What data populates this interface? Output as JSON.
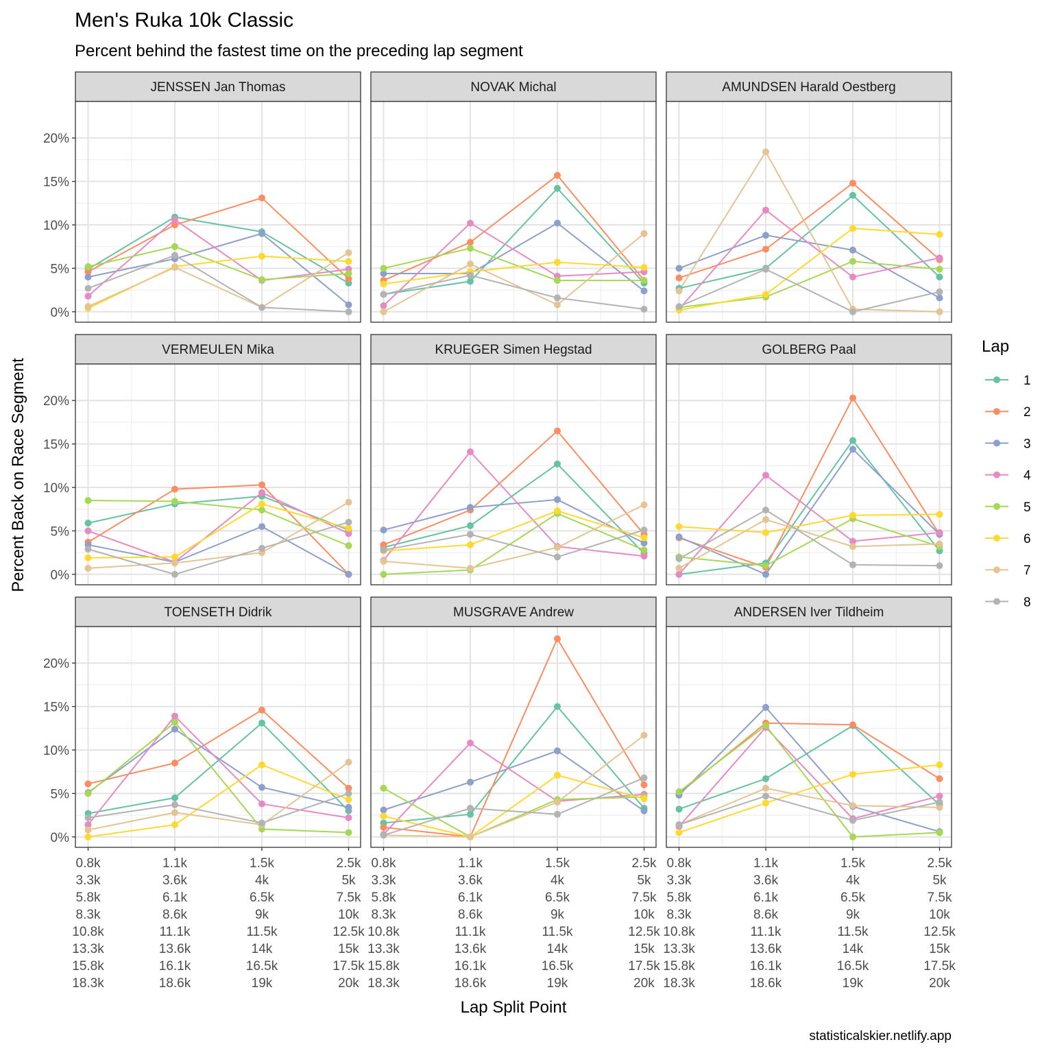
{
  "chart_data": {
    "type": "line",
    "title": "Men's Ruka 10k Classic",
    "subtitle": "Percent behind the fastest time on the preceding lap segment",
    "xlabel": "Lap Split Point",
    "ylabel": "Percent Back on Race Segment",
    "caption": "statisticalskier.netlify.app",
    "legend": {
      "title": "Lap",
      "position": "right",
      "entries": [
        "1",
        "2",
        "3",
        "4",
        "5",
        "6",
        "7",
        "8"
      ]
    },
    "y_ticks": [
      "0%",
      "5%",
      "10%",
      "15%",
      "20%"
    ],
    "y_tick_values": [
      0,
      5,
      10,
      15,
      20
    ],
    "ylim": [
      -1.2,
      24.2
    ],
    "x_tick_labels": [
      [
        "0.8k",
        "3.3k",
        "5.8k",
        "8.3k",
        "10.8k",
        "13.3k",
        "15.8k",
        "18.3k"
      ],
      [
        "1.1k",
        "3.6k",
        "6.1k",
        "8.6k",
        "11.1k",
        "13.6k",
        "16.1k",
        "18.6k"
      ],
      [
        "1.5k",
        "4k",
        "6.5k",
        "9k",
        "11.5k",
        "14k",
        "16.5k",
        "19k"
      ],
      [
        "2.5k",
        "5k",
        "7.5k",
        "10k",
        "12.5k",
        "15k",
        "17.5k",
        "20k"
      ]
    ],
    "colors": [
      "#66c2a5",
      "#fc8d62",
      "#8da0cb",
      "#e78ac3",
      "#a6d854",
      "#ffd92f",
      "#e5c494",
      "#b3b3b3"
    ],
    "grid": true,
    "facets": [
      {
        "name": "JENSSEN Jan Thomas",
        "series": [
          {
            "name": "1",
            "values": [
              4.9,
              10.9,
              9.2,
              3.3
            ]
          },
          {
            "name": "2",
            "values": [
              4.6,
              10.0,
              13.1,
              3.8
            ]
          },
          {
            "name": "3",
            "values": [
              4.0,
              6.1,
              9.0,
              0.8
            ]
          },
          {
            "name": "4",
            "values": [
              1.8,
              10.6,
              3.6,
              4.9
            ]
          },
          {
            "name": "5",
            "values": [
              5.2,
              7.5,
              3.7,
              4.4
            ]
          },
          {
            "name": "6",
            "values": [
              0.4,
              5.2,
              6.4,
              5.8
            ]
          },
          {
            "name": "7",
            "values": [
              0.6,
              5.1,
              0.5,
              6.8
            ]
          },
          {
            "name": "8",
            "values": [
              2.7,
              6.5,
              0.5,
              0.0
            ]
          }
        ]
      },
      {
        "name": "NOVAK Michal",
        "series": [
          {
            "name": "1",
            "values": [
              2.0,
              3.5,
              14.2,
              3.3
            ]
          },
          {
            "name": "2",
            "values": [
              3.6,
              8.0,
              15.7,
              3.6
            ]
          },
          {
            "name": "3",
            "values": [
              4.4,
              4.4,
              10.2,
              2.4
            ]
          },
          {
            "name": "4",
            "values": [
              0.7,
              10.2,
              4.1,
              4.6
            ]
          },
          {
            "name": "5",
            "values": [
              5.0,
              7.3,
              3.6,
              3.6
            ]
          },
          {
            "name": "6",
            "values": [
              3.2,
              4.6,
              5.7,
              5.1
            ]
          },
          {
            "name": "7",
            "values": [
              0.0,
              5.5,
              0.8,
              9.0
            ]
          },
          {
            "name": "8",
            "values": [
              2.0,
              4.2,
              1.6,
              0.3
            ]
          }
        ]
      },
      {
        "name": "AMUNDSEN Harald Oestberg",
        "series": [
          {
            "name": "1",
            "values": [
              2.7,
              5.0,
              13.4,
              4.0
            ]
          },
          {
            "name": "2",
            "values": [
              3.9,
              7.2,
              14.8,
              6.0
            ]
          },
          {
            "name": "3",
            "values": [
              5.0,
              8.8,
              7.1,
              1.6
            ]
          },
          {
            "name": "4",
            "values": [
              0.3,
              11.7,
              4.0,
              6.2
            ]
          },
          {
            "name": "5",
            "values": [
              0.5,
              1.7,
              5.8,
              4.9
            ]
          },
          {
            "name": "6",
            "values": [
              0.2,
              2.0,
              9.6,
              8.9
            ]
          },
          {
            "name": "7",
            "values": [
              2.4,
              18.4,
              0.3,
              0.0
            ]
          },
          {
            "name": "8",
            "values": [
              0.6,
              4.9,
              0.0,
              2.3
            ]
          }
        ]
      },
      {
        "name": "VERMEULEN Mika",
        "series": [
          {
            "name": "1",
            "values": [
              5.9,
              8.1,
              9.0,
              5.1
            ]
          },
          {
            "name": "2",
            "values": [
              3.7,
              9.8,
              10.3,
              0.0
            ]
          },
          {
            "name": "3",
            "values": [
              3.4,
              1.4,
              5.5,
              0.0
            ]
          },
          {
            "name": "4",
            "values": [
              5.0,
              1.4,
              9.4,
              4.7
            ]
          },
          {
            "name": "5",
            "values": [
              8.5,
              8.4,
              7.4,
              3.3
            ]
          },
          {
            "name": "6",
            "values": [
              1.9,
              2.0,
              8.1,
              5.3
            ]
          },
          {
            "name": "7",
            "values": [
              0.7,
              1.3,
              2.5,
              8.3
            ]
          },
          {
            "name": "8",
            "values": [
              2.9,
              0.0,
              3.0,
              6.0
            ]
          }
        ]
      },
      {
        "name": "KRUEGER Simen Hegstad",
        "series": [
          {
            "name": "1",
            "values": [
              3.1,
              5.6,
              12.7,
              2.4
            ]
          },
          {
            "name": "2",
            "values": [
              3.4,
              7.4,
              16.5,
              4.6
            ]
          },
          {
            "name": "3",
            "values": [
              5.1,
              7.7,
              8.6,
              3.6
            ]
          },
          {
            "name": "4",
            "values": [
              1.6,
              14.1,
              3.2,
              2.1
            ]
          },
          {
            "name": "5",
            "values": [
              0.0,
              0.5,
              7.0,
              2.8
            ]
          },
          {
            "name": "6",
            "values": [
              2.7,
              3.4,
              7.3,
              4.2
            ]
          },
          {
            "name": "7",
            "values": [
              1.5,
              0.7,
              3.1,
              8.0
            ]
          },
          {
            "name": "8",
            "values": [
              2.8,
              4.6,
              2.0,
              5.1
            ]
          }
        ]
      },
      {
        "name": "GOLBERG Paal",
        "series": [
          {
            "name": "1",
            "values": [
              0.0,
              1.3,
              15.4,
              2.7
            ]
          },
          {
            "name": "2",
            "values": [
              4.2,
              0.8,
              20.3,
              4.6
            ]
          },
          {
            "name": "3",
            "values": [
              4.3,
              0.0,
              14.4,
              4.6
            ]
          },
          {
            "name": "4",
            "values": [
              0.0,
              11.4,
              3.8,
              4.8
            ]
          },
          {
            "name": "5",
            "values": [
              2.0,
              1.0,
              6.4,
              3.2
            ]
          },
          {
            "name": "6",
            "values": [
              5.5,
              4.8,
              6.8,
              6.9
            ]
          },
          {
            "name": "7",
            "values": [
              0.7,
              6.3,
              3.2,
              3.5
            ]
          },
          {
            "name": "8",
            "values": [
              1.8,
              7.4,
              1.1,
              1.0
            ]
          }
        ]
      },
      {
        "name": "TOENSETH Didrik",
        "series": [
          {
            "name": "1",
            "values": [
              2.7,
              4.5,
              13.1,
              3.0
            ]
          },
          {
            "name": "2",
            "values": [
              6.1,
              8.5,
              14.6,
              5.6
            ]
          },
          {
            "name": "3",
            "values": [
              5.1,
              12.4,
              5.7,
              3.4
            ]
          },
          {
            "name": "4",
            "values": [
              1.4,
              13.9,
              3.8,
              2.2
            ]
          },
          {
            "name": "5",
            "values": [
              5.0,
              13.2,
              0.9,
              0.5
            ]
          },
          {
            "name": "6",
            "values": [
              0.0,
              1.4,
              8.3,
              4.3
            ]
          },
          {
            "name": "7",
            "values": [
              0.8,
              2.8,
              1.4,
              8.6
            ]
          },
          {
            "name": "8",
            "values": [
              2.2,
              3.7,
              1.6,
              5.0
            ]
          }
        ]
      },
      {
        "name": "MUSGRAVE Andrew",
        "series": [
          {
            "name": "1",
            "values": [
              1.6,
              2.6,
              15.0,
              3.3
            ]
          },
          {
            "name": "2",
            "values": [
              1.1,
              0.0,
              22.8,
              6.0
            ]
          },
          {
            "name": "3",
            "values": [
              3.1,
              6.3,
              9.9,
              3.0
            ]
          },
          {
            "name": "4",
            "values": [
              0.3,
              10.8,
              4.1,
              4.9
            ]
          },
          {
            "name": "5",
            "values": [
              5.6,
              0.0,
              4.3,
              4.6
            ]
          },
          {
            "name": "6",
            "values": [
              2.4,
              0.0,
              7.1,
              4.4
            ]
          },
          {
            "name": "7",
            "values": [
              0.2,
              0.0,
              4.0,
              11.7
            ]
          },
          {
            "name": "8",
            "values": [
              0.2,
              3.3,
              2.6,
              6.8
            ]
          }
        ]
      },
      {
        "name": "ANDERSEN Iver Tildheim",
        "series": [
          {
            "name": "1",
            "values": [
              3.2,
              6.7,
              12.8,
              3.7
            ]
          },
          {
            "name": "2",
            "values": [
              5.0,
              13.1,
              12.9,
              6.7
            ]
          },
          {
            "name": "3",
            "values": [
              4.8,
              14.9,
              3.5,
              0.6
            ]
          },
          {
            "name": "4",
            "values": [
              1.2,
              12.6,
              2.1,
              4.7
            ]
          },
          {
            "name": "5",
            "values": [
              5.2,
              12.8,
              0.0,
              0.5
            ]
          },
          {
            "name": "6",
            "values": [
              0.5,
              3.9,
              7.2,
              8.3
            ]
          },
          {
            "name": "7",
            "values": [
              1.4,
              5.6,
              3.6,
              3.4
            ]
          },
          {
            "name": "8",
            "values": [
              1.4,
              4.7,
              1.9,
              4.0
            ]
          }
        ]
      }
    ]
  }
}
